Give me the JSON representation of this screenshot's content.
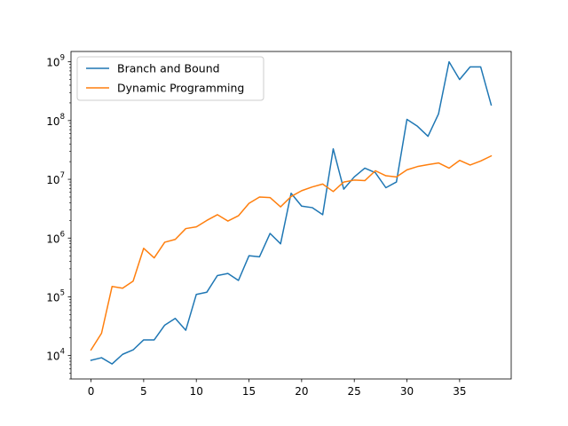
{
  "chart_data": {
    "type": "line",
    "yscale": "log",
    "title": "",
    "xlabel": "",
    "ylabel": "",
    "xlim": [
      -1.9,
      39.9
    ],
    "ylim": [
      4000,
      1500000000
    ],
    "grid": false,
    "legend_position": "top-left",
    "x": [
      0,
      1,
      2,
      3,
      4,
      5,
      6,
      7,
      8,
      9,
      10,
      11,
      12,
      13,
      14,
      15,
      16,
      17,
      18,
      19,
      20,
      21,
      22,
      23,
      24,
      25,
      26,
      27,
      28,
      29,
      30,
      31,
      32,
      33,
      34,
      35,
      36,
      37,
      38
    ],
    "series": [
      {
        "name": "Branch and Bound",
        "color": "#1f77b4",
        "values": [
          8300,
          9200,
          7200,
          10500,
          12500,
          18500,
          18500,
          33000,
          43000,
          27000,
          110000,
          120000,
          230000,
          250000,
          190000,
          500000,
          480000,
          1200000,
          800000,
          5800000,
          3500000,
          3300000,
          2500000,
          33000000,
          6800000,
          11000000,
          15500000,
          13000000,
          7200000,
          9000000,
          105000000,
          80000000,
          54000000,
          130000000,
          1000000000,
          500000000,
          820000000,
          820000000,
          185000000
        ]
      },
      {
        "name": "Dynamic Programming",
        "color": "#ff7f0e",
        "values": [
          12500,
          24000,
          150000,
          140000,
          185000,
          670000,
          460000,
          850000,
          950000,
          1450000,
          1550000,
          2000000,
          2500000,
          1950000,
          2400000,
          3900000,
          5000000,
          4900000,
          3400000,
          5100000,
          6400000,
          7400000,
          8300000,
          6200000,
          9000000,
          9700000,
          9500000,
          14000000,
          11500000,
          11000000,
          14500000,
          16500000,
          17800000,
          19000000,
          15500000,
          21000000,
          17500000,
          20500000,
          25000000
        ]
      }
    ],
    "xticks": [
      0,
      5,
      10,
      15,
      20,
      25,
      30,
      35
    ],
    "xtick_labels": [
      "0",
      "5",
      "10",
      "15",
      "20",
      "25",
      "30",
      "35"
    ],
    "yticks": [
      10000,
      100000,
      1000000,
      10000000,
      100000000,
      1000000000
    ],
    "ytick_labels": [
      {
        "base": "10",
        "exp": "4"
      },
      {
        "base": "10",
        "exp": "5"
      },
      {
        "base": "10",
        "exp": "6"
      },
      {
        "base": "10",
        "exp": "7"
      },
      {
        "base": "10",
        "exp": "8"
      },
      {
        "base": "10",
        "exp": "9"
      }
    ]
  }
}
